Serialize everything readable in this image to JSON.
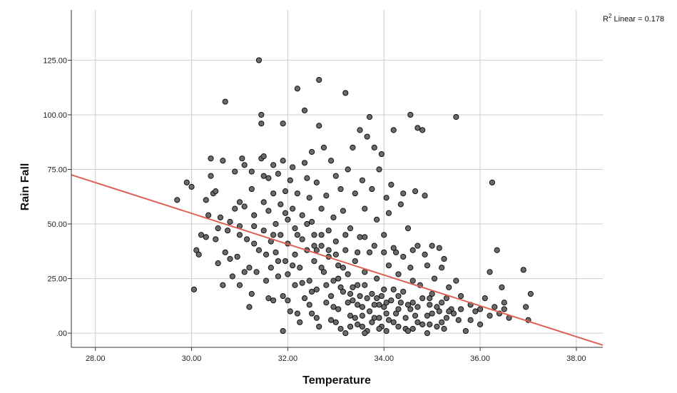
{
  "chart_data": {
    "type": "scatter",
    "xlabel": "Temperature",
    "ylabel": "Rain Fall",
    "xlim": [
      27.5,
      38.55
    ],
    "ylim": [
      -6.5,
      148
    ],
    "xticks": [
      28,
      30,
      32,
      34,
      36,
      38
    ],
    "yticks": [
      0,
      25,
      50,
      75,
      100,
      125
    ],
    "xtick_labels": [
      "28.00",
      "30.00",
      "32.00",
      "34.00",
      "36.00",
      "38.00"
    ],
    "ytick_labels": [
      ".00",
      "25.00",
      "50.00",
      "75.00",
      "100.00",
      "125.00"
    ],
    "grid": true,
    "r2_prefix": "R",
    "r2_sup": "2",
    "r2_suffix": " Linear = 0.178",
    "fit_line": {
      "x": [
        27.5,
        38.55
      ],
      "y": [
        72.5,
        -5.5
      ]
    },
    "colors": {
      "points": "#6b6b6b",
      "point_edge": "#111111",
      "fit_line": "#e06055",
      "grid": "#cfcfcf",
      "axis": "#333333"
    },
    "points": [
      [
        29.7,
        61
      ],
      [
        29.9,
        69
      ],
      [
        30.0,
        67
      ],
      [
        30.05,
        20
      ],
      [
        30.1,
        38
      ],
      [
        30.2,
        45
      ],
      [
        30.3,
        44
      ],
      [
        30.35,
        54
      ],
      [
        30.4,
        80
      ],
      [
        30.4,
        72
      ],
      [
        30.45,
        64
      ],
      [
        30.5,
        65
      ],
      [
        30.5,
        43
      ],
      [
        30.55,
        32
      ],
      [
        30.6,
        53
      ],
      [
        30.65,
        79
      ],
      [
        30.65,
        22
      ],
      [
        30.7,
        106
      ],
      [
        30.7,
        37
      ],
      [
        30.75,
        47
      ],
      [
        30.8,
        51
      ],
      [
        30.85,
        26
      ],
      [
        30.9,
        74
      ],
      [
        30.9,
        57
      ],
      [
        30.95,
        35
      ],
      [
        31.0,
        60
      ],
      [
        31.0,
        49
      ],
      [
        31.0,
        22
      ],
      [
        31.05,
        80
      ],
      [
        31.1,
        77
      ],
      [
        31.1,
        58
      ],
      [
        31.15,
        43
      ],
      [
        31.2,
        30
      ],
      [
        31.2,
        12
      ],
      [
        31.25,
        74
      ],
      [
        31.25,
        66
      ],
      [
        31.3,
        54
      ],
      [
        31.3,
        41
      ],
      [
        31.35,
        28
      ],
      [
        31.4,
        125
      ],
      [
        31.45,
        100
      ],
      [
        31.45,
        96
      ],
      [
        31.45,
        80
      ],
      [
        31.5,
        81
      ],
      [
        31.5,
        72
      ],
      [
        31.5,
        47
      ],
      [
        31.55,
        36
      ],
      [
        31.55,
        24
      ],
      [
        31.6,
        71
      ],
      [
        31.6,
        56
      ],
      [
        31.65,
        42
      ],
      [
        31.65,
        30
      ],
      [
        31.7,
        77
      ],
      [
        31.7,
        64
      ],
      [
        31.7,
        15
      ],
      [
        31.75,
        50
      ],
      [
        31.75,
        37
      ],
      [
        31.8,
        73
      ],
      [
        31.8,
        26
      ],
      [
        31.85,
        59
      ],
      [
        31.85,
        45
      ],
      [
        31.9,
        96
      ],
      [
        31.9,
        79
      ],
      [
        31.9,
        17
      ],
      [
        31.9,
        1
      ],
      [
        31.95,
        65
      ],
      [
        31.95,
        33
      ],
      [
        32.0,
        52
      ],
      [
        32.0,
        41
      ],
      [
        32.0,
        27
      ],
      [
        32.05,
        70
      ],
      [
        32.05,
        10
      ],
      [
        32.1,
        76
      ],
      [
        32.1,
        57
      ],
      [
        32.15,
        48
      ],
      [
        32.15,
        36
      ],
      [
        32.15,
        22
      ],
      [
        32.2,
        112
      ],
      [
        32.2,
        64
      ],
      [
        32.25,
        30
      ],
      [
        32.25,
        5
      ],
      [
        32.3,
        54
      ],
      [
        32.3,
        43
      ],
      [
        32.35,
        102
      ],
      [
        32.35,
        78
      ],
      [
        32.35,
        16
      ],
      [
        32.4,
        71
      ],
      [
        32.4,
        38
      ],
      [
        32.45,
        62
      ],
      [
        32.45,
        24
      ],
      [
        32.5,
        83
      ],
      [
        32.5,
        51
      ],
      [
        32.5,
        9
      ],
      [
        32.55,
        45
      ],
      [
        32.55,
        33
      ],
      [
        32.6,
        69
      ],
      [
        32.6,
        20
      ],
      [
        32.65,
        116
      ],
      [
        32.65,
        95
      ],
      [
        32.65,
        3
      ],
      [
        32.7,
        57
      ],
      [
        32.7,
        40
      ],
      [
        32.75,
        85
      ],
      [
        32.75,
        28
      ],
      [
        32.8,
        63
      ],
      [
        32.8,
        14
      ],
      [
        32.85,
        47
      ],
      [
        32.85,
        35
      ],
      [
        32.9,
        79
      ],
      [
        32.9,
        6
      ],
      [
        32.95,
        53
      ],
      [
        32.95,
        24
      ],
      [
        33.0,
        72
      ],
      [
        33.0,
        42
      ],
      [
        33.05,
        31
      ],
      [
        33.05,
        11
      ],
      [
        33.1,
        66
      ],
      [
        33.1,
        2
      ],
      [
        33.15,
        56
      ],
      [
        33.15,
        19
      ],
      [
        33.2,
        110
      ],
      [
        33.2,
        38
      ],
      [
        33.25,
        75
      ],
      [
        33.25,
        27
      ],
      [
        33.3,
        48
      ],
      [
        33.3,
        8
      ],
      [
        33.35,
        85
      ],
      [
        33.35,
        15
      ],
      [
        33.4,
        64
      ],
      [
        33.4,
        33
      ],
      [
        33.45,
        22
      ],
      [
        33.45,
        4
      ],
      [
        33.5,
        93
      ],
      [
        33.5,
        44
      ],
      [
        33.55,
        70
      ],
      [
        33.55,
        12
      ],
      [
        33.6,
        57
      ],
      [
        33.6,
        28
      ],
      [
        33.65,
        90
      ],
      [
        33.65,
        1
      ],
      [
        33.7,
        99
      ],
      [
        33.7,
        37
      ],
      [
        33.75,
        66
      ],
      [
        33.75,
        18
      ],
      [
        33.8,
        85
      ],
      [
        33.8,
        7
      ],
      [
        33.85,
        52
      ],
      [
        33.85,
        25
      ],
      [
        33.9,
        75
      ],
      [
        33.9,
        13
      ],
      [
        33.95,
        82
      ],
      [
        33.95,
        3
      ],
      [
        34.0,
        45
      ],
      [
        34.0,
        20
      ],
      [
        34.05,
        62
      ],
      [
        34.05,
        9
      ],
      [
        34.1,
        55
      ],
      [
        34.1,
        31
      ],
      [
        34.15,
        68
      ],
      [
        34.15,
        15
      ],
      [
        34.2,
        93
      ],
      [
        34.2,
        5
      ],
      [
        34.25,
        37
      ],
      [
        34.3,
        27
      ],
      [
        34.3,
        11
      ],
      [
        34.35,
        59
      ],
      [
        34.4,
        64
      ],
      [
        34.4,
        19
      ],
      [
        34.45,
        2
      ],
      [
        34.5,
        48
      ],
      [
        34.55,
        100
      ],
      [
        34.55,
        30
      ],
      [
        34.6,
        14
      ],
      [
        34.65,
        65
      ],
      [
        34.65,
        8
      ],
      [
        34.7,
        94
      ],
      [
        34.7,
        40
      ],
      [
        34.75,
        22
      ],
      [
        34.8,
        93
      ],
      [
        34.8,
        4
      ],
      [
        34.85,
        63
      ],
      [
        34.9,
        31
      ],
      [
        34.95,
        16
      ],
      [
        35.0,
        9
      ],
      [
        35.05,
        25
      ],
      [
        35.1,
        3
      ],
      [
        35.15,
        39
      ],
      [
        35.2,
        14
      ],
      [
        35.25,
        34
      ],
      [
        35.3,
        7
      ],
      [
        35.35,
        21
      ],
      [
        35.4,
        11
      ],
      [
        35.5,
        99
      ],
      [
        35.5,
        24
      ],
      [
        35.55,
        6
      ],
      [
        35.6,
        17
      ],
      [
        35.7,
        1
      ],
      [
        35.8,
        13
      ],
      [
        35.9,
        10
      ],
      [
        36.0,
        4
      ],
      [
        36.1,
        16
      ],
      [
        36.2,
        28
      ],
      [
        36.25,
        69
      ],
      [
        36.3,
        12
      ],
      [
        36.35,
        38
      ],
      [
        36.4,
        9
      ],
      [
        36.45,
        21
      ],
      [
        36.5,
        14
      ],
      [
        36.6,
        7
      ],
      [
        36.9,
        29
      ],
      [
        36.95,
        12
      ],
      [
        37.0,
        6
      ],
      [
        37.05,
        18
      ],
      [
        30.15,
        36
      ],
      [
        30.3,
        61
      ],
      [
        30.55,
        48
      ],
      [
        30.8,
        34
      ],
      [
        31.1,
        28
      ],
      [
        31.25,
        18
      ],
      [
        31.4,
        38
      ],
      [
        31.6,
        16
      ],
      [
        31.8,
        33
      ],
      [
        32.0,
        15
      ],
      [
        32.1,
        31
      ],
      [
        32.3,
        23
      ],
      [
        32.45,
        13
      ],
      [
        32.6,
        38
      ],
      [
        32.7,
        30
      ],
      [
        32.8,
        22
      ],
      [
        32.95,
        12
      ],
      [
        33.05,
        25
      ],
      [
        33.15,
        30
      ],
      [
        33.25,
        14
      ],
      [
        33.35,
        21
      ],
      [
        33.4,
        7
      ],
      [
        33.5,
        17
      ],
      [
        33.55,
        3
      ],
      [
        33.6,
        22
      ],
      [
        33.7,
        10
      ],
      [
        33.75,
        5
      ],
      [
        33.85,
        16
      ],
      [
        33.9,
        2
      ],
      [
        34.0,
        12
      ],
      [
        34.1,
        6
      ],
      [
        34.2,
        20
      ],
      [
        34.25,
        9
      ],
      [
        34.35,
        14
      ],
      [
        34.45,
        7
      ],
      [
        34.55,
        11
      ],
      [
        34.6,
        24
      ],
      [
        34.7,
        5
      ],
      [
        34.8,
        16
      ],
      [
        34.9,
        8
      ],
      [
        35.0,
        18
      ],
      [
        35.1,
        12
      ],
      [
        35.2,
        5
      ],
      [
        35.3,
        16
      ],
      [
        35.45,
        9
      ],
      [
        35.6,
        11
      ],
      [
        35.8,
        6
      ],
      [
        36.0,
        11
      ],
      [
        36.2,
        8
      ],
      [
        36.5,
        11
      ],
      [
        31.0,
        45
      ],
      [
        31.3,
        49
      ],
      [
        31.5,
        60
      ],
      [
        31.7,
        45
      ],
      [
        31.95,
        55
      ],
      [
        32.2,
        45
      ],
      [
        32.4,
        50
      ],
      [
        32.55,
        40
      ],
      [
        32.7,
        45
      ],
      [
        32.85,
        38
      ],
      [
        33.0,
        36
      ],
      [
        33.2,
        45
      ],
      [
        33.45,
        37
      ],
      [
        33.6,
        44
      ],
      [
        33.8,
        40
      ],
      [
        34.0,
        37
      ],
      [
        34.2,
        39
      ],
      [
        34.4,
        35
      ],
      [
        34.6,
        38
      ],
      [
        34.85,
        36
      ],
      [
        35.0,
        40
      ],
      [
        35.2,
        30
      ],
      [
        32.5,
        19
      ],
      [
        32.9,
        17
      ],
      [
        33.1,
        21
      ],
      [
        33.3,
        18
      ],
      [
        33.45,
        13
      ],
      [
        33.65,
        16
      ],
      [
        33.8,
        13
      ],
      [
        33.95,
        17
      ],
      [
        34.05,
        14
      ],
      [
        34.3,
        17
      ],
      [
        34.5,
        13
      ],
      [
        34.7,
        12
      ],
      [
        34.95,
        13
      ],
      [
        35.15,
        10
      ],
      [
        35.35,
        10
      ],
      [
        32.2,
        9
      ],
      [
        32.6,
        7
      ],
      [
        33.0,
        5
      ],
      [
        33.3,
        3
      ],
      [
        33.55,
        8
      ],
      [
        33.9,
        7
      ],
      [
        34.3,
        3
      ],
      [
        34.6,
        2
      ],
      [
        34.95,
        4
      ],
      [
        35.25,
        2
      ],
      [
        33.2,
        0
      ],
      [
        33.6,
        0
      ],
      [
        34.05,
        1
      ],
      [
        34.5,
        1
      ],
      [
        34.9,
        0
      ]
    ]
  }
}
